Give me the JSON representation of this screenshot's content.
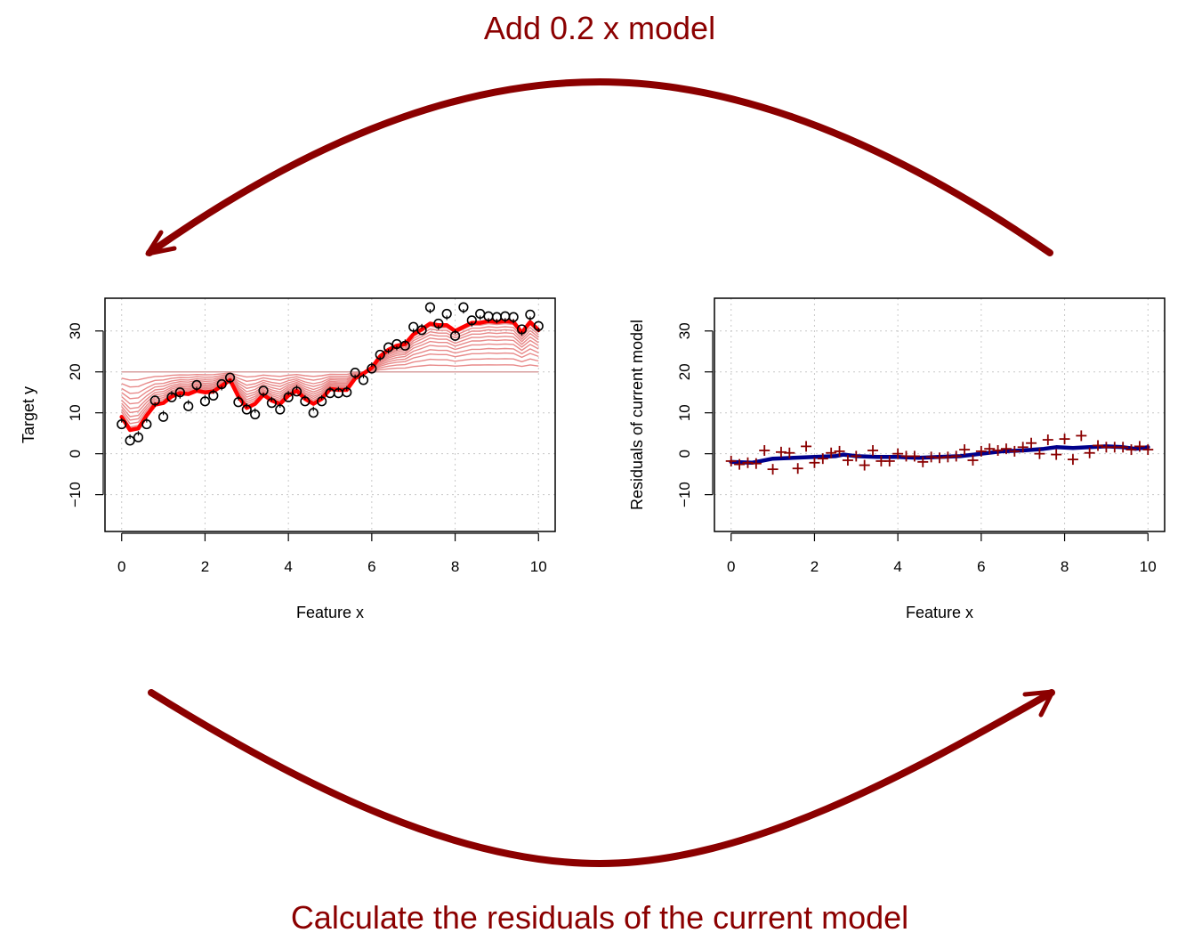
{
  "captions": {
    "top": "Add 0.2 x model",
    "bottom": "Calculate the residuals of the current model"
  },
  "colors": {
    "arrow": "#8b0000",
    "fit_final": "#ff0000",
    "fit_iter": "#e88a8a",
    "residual_points": "#8b0000",
    "residual_fit": "#00008b",
    "grid": "#c8c8c8"
  },
  "chart_data": [
    {
      "type": "scatter",
      "title": "",
      "xlabel": "Feature x",
      "ylabel": "Target y",
      "xlim": [
        -0.4,
        10.4
      ],
      "ylim": [
        -19,
        38
      ],
      "xticks": [
        0,
        2,
        4,
        6,
        8,
        10
      ],
      "yticks": [
        -10,
        0,
        10,
        20,
        30
      ],
      "grid": true,
      "marker": "circle",
      "x": [
        0,
        0.2,
        0.4,
        0.6,
        0.8,
        1.0,
        1.2,
        1.4,
        1.6,
        1.8,
        2.0,
        2.2,
        2.4,
        2.6,
        2.8,
        3.0,
        3.2,
        3.4,
        3.6,
        3.8,
        4.0,
        4.2,
        4.4,
        4.6,
        4.8,
        5.0,
        5.2,
        5.4,
        5.6,
        5.8,
        6.0,
        6.2,
        6.4,
        6.6,
        6.8,
        7.0,
        7.2,
        7.4,
        7.6,
        7.8,
        8.0,
        8.2,
        8.4,
        8.6,
        8.8,
        9.0,
        9.2,
        9.4,
        9.6,
        9.8,
        10.0
      ],
      "y": [
        7.2,
        3.2,
        4.0,
        7.2,
        13.0,
        9.0,
        13.8,
        15.0,
        11.6,
        16.8,
        12.8,
        14.2,
        17.0,
        18.6,
        12.6,
        10.8,
        9.6,
        15.4,
        12.4,
        10.8,
        13.8,
        15.2,
        12.8,
        10.0,
        12.8,
        14.8,
        14.8,
        15.0,
        19.8,
        18.0,
        20.8,
        24.2,
        26.0,
        26.8,
        26.4,
        31.0,
        30.2,
        35.8,
        31.8,
        34.2,
        28.8,
        35.8,
        32.6,
        34.2,
        33.6,
        33.4,
        33.6,
        33.4,
        30.4,
        34.0,
        31.2
      ],
      "series": [
        {
          "role": "final_fit",
          "x": [
            0,
            0.2,
            0.4,
            0.6,
            0.8,
            1.0,
            1.2,
            1.4,
            1.6,
            1.8,
            2.0,
            2.2,
            2.4,
            2.6,
            2.8,
            3.0,
            3.2,
            3.4,
            3.6,
            3.8,
            4.0,
            4.2,
            4.4,
            4.6,
            4.8,
            5.0,
            5.2,
            5.4,
            5.6,
            5.8,
            6.0,
            6.2,
            6.4,
            6.6,
            6.8,
            7.0,
            7.2,
            7.4,
            7.6,
            7.8,
            8.0,
            8.2,
            8.4,
            8.6,
            8.8,
            9.0,
            9.2,
            9.4,
            9.6,
            9.8,
            10.0
          ],
          "values": [
            9.0,
            5.8,
            6.2,
            9.4,
            12.0,
            12.4,
            14.0,
            14.8,
            14.6,
            15.4,
            15.0,
            15.2,
            16.6,
            18.0,
            14.0,
            11.2,
            12.2,
            14.4,
            13.0,
            12.2,
            14.2,
            15.4,
            13.4,
            12.2,
            13.4,
            15.8,
            15.6,
            15.6,
            18.4,
            19.6,
            21.0,
            23.8,
            25.4,
            26.4,
            26.8,
            29.2,
            30.4,
            31.8,
            31.4,
            31.4,
            30.0,
            31.0,
            32.0,
            32.0,
            32.4,
            32.2,
            32.4,
            32.2,
            29.6,
            32.2,
            30.2
          ]
        },
        {
          "role": "base_fit",
          "x": [
            0,
            6,
            10
          ],
          "values": [
            20,
            20,
            20
          ]
        }
      ],
      "iterations": [
        0.14,
        0.26,
        0.37,
        0.46,
        0.55,
        0.63,
        0.7,
        0.77,
        0.83,
        0.89,
        0.95
      ]
    },
    {
      "type": "scatter",
      "title": "",
      "xlabel": "Feature x",
      "ylabel": "Residuals of current model",
      "xlim": [
        -0.4,
        10.4
      ],
      "ylim": [
        -19,
        38
      ],
      "xticks": [
        0,
        2,
        4,
        6,
        8,
        10
      ],
      "yticks": [
        -10,
        0,
        10,
        20,
        30
      ],
      "grid": true,
      "marker": "plus",
      "x": [
        0,
        0.2,
        0.4,
        0.6,
        0.8,
        1.0,
        1.2,
        1.4,
        1.6,
        1.8,
        2.0,
        2.2,
        2.4,
        2.6,
        2.8,
        3.0,
        3.2,
        3.4,
        3.6,
        3.8,
        4.0,
        4.2,
        4.4,
        4.6,
        4.8,
        5.0,
        5.2,
        5.4,
        5.6,
        5.8,
        6.0,
        6.2,
        6.4,
        6.6,
        6.8,
        7.0,
        7.2,
        7.4,
        7.6,
        7.8,
        8.0,
        8.2,
        8.4,
        8.6,
        8.8,
        9.0,
        9.2,
        9.4,
        9.6,
        9.8,
        10.0
      ],
      "y": [
        -1.8,
        -2.6,
        -2.2,
        -2.4,
        0.8,
        -3.8,
        0.4,
        0.2,
        -3.6,
        1.8,
        -2.2,
        -1.2,
        0.2,
        0.6,
        -1.6,
        -0.6,
        -2.8,
        0.8,
        -1.8,
        -1.8,
        0.0,
        -0.6,
        -0.6,
        -2.0,
        -0.8,
        -1.0,
        -0.8,
        -0.6,
        1.0,
        -1.6,
        0.6,
        1.2,
        0.8,
        1.2,
        0.6,
        1.6,
        2.6,
        0.0,
        3.4,
        -0.2,
        3.6,
        -1.4,
        4.4,
        0.2,
        2.0,
        1.6,
        1.6,
        1.6,
        1.0,
        1.8,
        1.0
      ],
      "series": [
        {
          "role": "residual_fit",
          "x": [
            0,
            0.5,
            1.0,
            1.5,
            2.0,
            2.5,
            2.7,
            3.0,
            3.5,
            4.0,
            4.5,
            5.0,
            5.5,
            6.0,
            6.5,
            7.0,
            7.5,
            7.8,
            8.2,
            8.6,
            9.0,
            9.4,
            9.7,
            10.0
          ],
          "values": [
            -2.0,
            -2.2,
            -1.2,
            -1.0,
            -0.8,
            -0.6,
            -0.2,
            -0.6,
            -0.8,
            -0.8,
            -1.0,
            -0.8,
            -0.6,
            0.0,
            0.6,
            0.8,
            1.2,
            1.6,
            1.4,
            1.6,
            1.8,
            1.6,
            1.2,
            1.6
          ]
        }
      ]
    }
  ]
}
